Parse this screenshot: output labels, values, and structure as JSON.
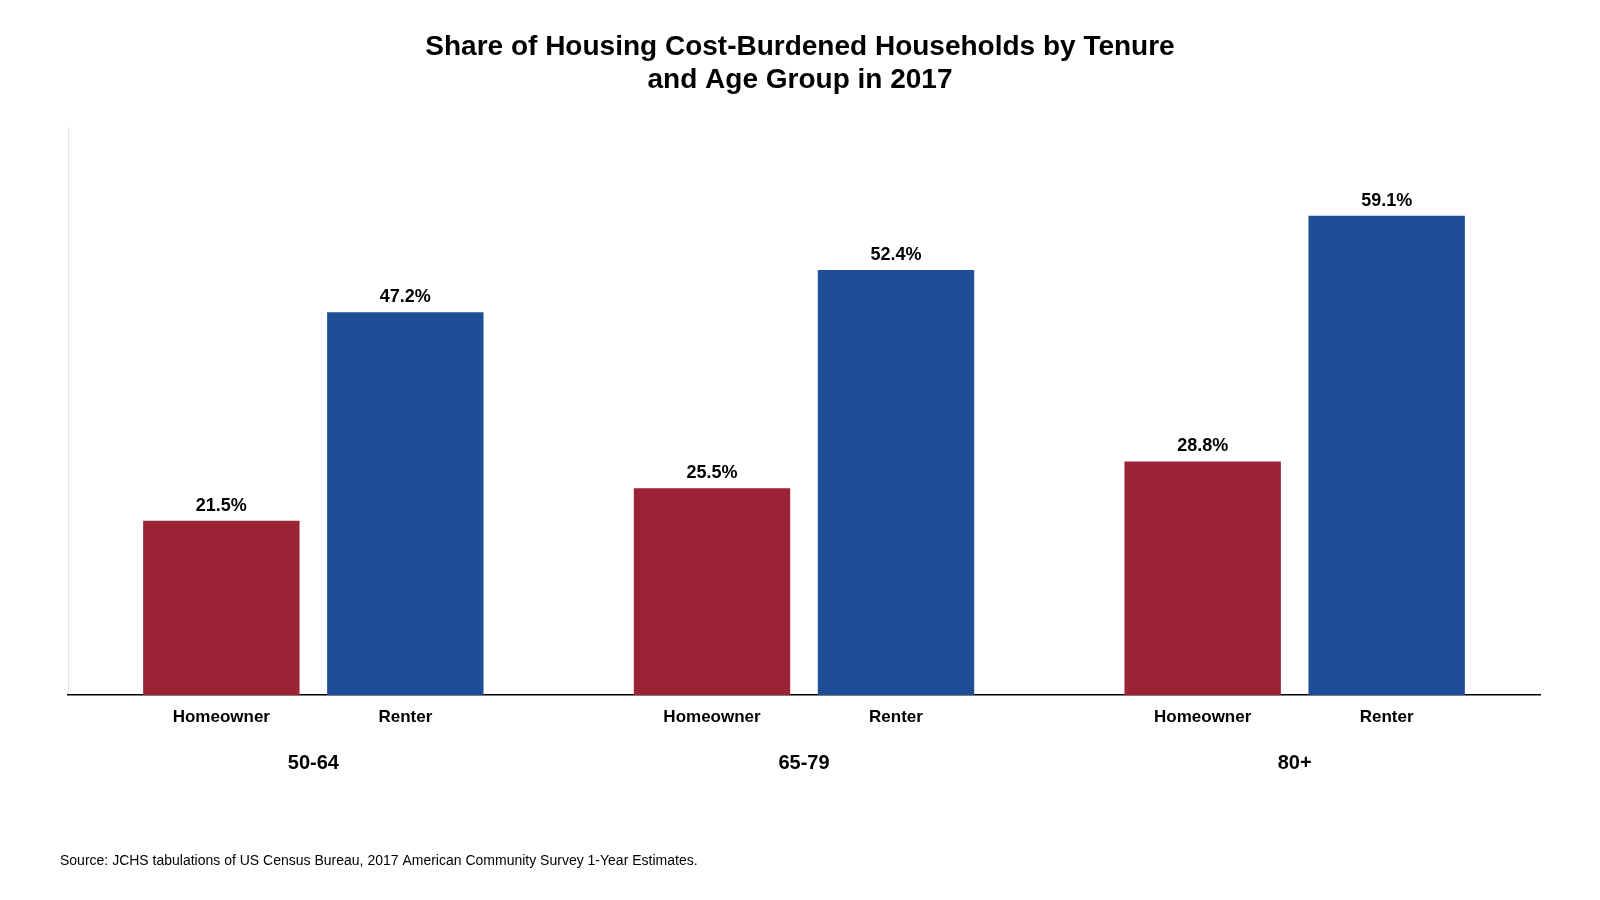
{
  "chart_data": {
    "type": "bar",
    "title": "Share of Housing Cost-Burdened Households by Tenure\nand Age Group in 2017",
    "categories": [
      "50-64",
      "65-79",
      "80+"
    ],
    "series": [
      {
        "name": "Homeowner",
        "color": "#9B2335",
        "values": [
          21.5,
          25.5,
          28.8
        ],
        "value_labels": [
          "21.5%",
          "25.5%",
          "28.8%"
        ]
      },
      {
        "name": "Renter",
        "color": "#1F4E96",
        "values": [
          47.2,
          52.4,
          59.1
        ],
        "value_labels": [
          "47.2%",
          "52.4%",
          "59.1%"
        ]
      }
    ],
    "ylim": [
      0,
      70
    ],
    "grid": false,
    "data_labels": true,
    "tick_labels": "x",
    "annotations": [
      "Source: JCHS tabulations of US Census Bureau, 2017 American Community Survey 1-Year Estimates."
    ]
  }
}
